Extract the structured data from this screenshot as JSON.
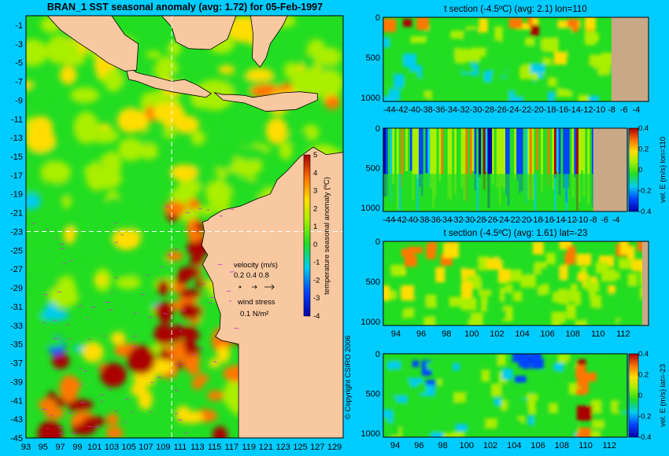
{
  "chart_data": [
    {
      "type": "heatmap",
      "title": "BRAN_1 SST seasonal anomaly (avg: 1.72) for 05-Feb-1997",
      "xlabel": "",
      "ylabel": "",
      "x_ticks": [
        "93",
        "95",
        "97",
        "99",
        "101",
        "103",
        "105",
        "107",
        "109",
        "111",
        "113",
        "115",
        "117",
        "119",
        "121",
        "123",
        "125",
        "127",
        "129"
      ],
      "y_ticks": [
        "-1",
        "-3",
        "-5",
        "-7",
        "-9",
        "-11",
        "-13",
        "-15",
        "-17",
        "-19",
        "-21",
        "-23",
        "-25",
        "-27",
        "-29",
        "-31",
        "-33",
        "-35",
        "-37",
        "-39",
        "-41",
        "-43",
        "-45"
      ],
      "xlim": [
        93,
        130
      ],
      "ylim": [
        -45,
        0
      ],
      "section_lon": 110,
      "section_lat": -23,
      "colorbar": {
        "label": "temperature seasonal anomaly (ºC)",
        "ticks": [
          "5",
          "4",
          "3",
          "2",
          "1",
          "0",
          "-1",
          "-2",
          "-3",
          "-4"
        ],
        "range": [
          -4,
          5
        ]
      },
      "velocity_legend": {
        "title": "velocity (m/s)",
        "values": "0.2 0.4 0.8"
      },
      "wind_legend": {
        "title": "wind stress",
        "value": "0.1 N/m²"
      },
      "copyright": "© Copyright CSIRO 2006"
    },
    {
      "type": "heatmap",
      "title": "t section (-4.5ºC) (avg: 2.1) lon=110",
      "x_ticks": [
        "-44",
        "-42",
        "-40",
        "-38",
        "-36",
        "-34",
        "-32",
        "-30",
        "-28",
        "-26",
        "-24",
        "-22",
        "-20",
        "-18",
        "-16",
        "-14",
        "-12",
        "-10",
        "-8",
        "-6",
        "-4"
      ],
      "y_ticks": [
        "0",
        "500",
        "1000"
      ],
      "xlim": [
        -45,
        -2
      ],
      "ylim": [
        1050,
        0
      ],
      "land_from": -8
    },
    {
      "type": "heatmap",
      "title": "",
      "x_ticks": [
        "-44",
        "-42",
        "-40",
        "-38",
        "-36",
        "-34",
        "-32",
        "-30",
        "-28",
        "-26",
        "-24",
        "-22",
        "-20",
        "-18",
        "-16",
        "-14",
        "-12",
        "-10",
        "-8",
        "-6",
        "-4"
      ],
      "y_ticks": [
        "0",
        "500",
        "1000"
      ],
      "xlim": [
        -45,
        -2
      ],
      "ylim": [
        1050,
        0
      ],
      "land_from": -8,
      "colorbar": {
        "label": "vel. E (m/s) lon=110",
        "ticks": [
          "0.4",
          "0.2",
          "0",
          "-0.2",
          "-0.4"
        ],
        "range": [
          -0.4,
          0.4
        ]
      }
    },
    {
      "type": "heatmap",
      "title": "t section (-4.5ºC) (avg: 1.61) lat=-23",
      "x_ticks": [
        "94",
        "96",
        "98",
        "100",
        "102",
        "104",
        "106",
        "108",
        "110",
        "112"
      ],
      "y_ticks": [
        "0",
        "500",
        "1000"
      ],
      "xlim": [
        93,
        114
      ],
      "ylim": [
        1050,
        0
      ],
      "land_from": 113.5
    },
    {
      "type": "heatmap",
      "title": "",
      "x_ticks": [
        "94",
        "96",
        "98",
        "100",
        "102",
        "104",
        "106",
        "108",
        "110",
        "112"
      ],
      "y_ticks": [
        "0",
        "500",
        "1000"
      ],
      "xlim": [
        93,
        113.5
      ],
      "ylim": [
        1050,
        0
      ],
      "colorbar": {
        "label": "vel. E (m/s) lat=-23",
        "ticks": [
          "0.4",
          "0.2",
          "0",
          "-0.2",
          "-0.4"
        ],
        "range": [
          -0.4,
          0.4
        ]
      }
    }
  ],
  "colors": {
    "background": "#00ccff",
    "land": "#f8c8a0",
    "land_section": "#c9a888",
    "ocean_base": "#22dd22"
  }
}
